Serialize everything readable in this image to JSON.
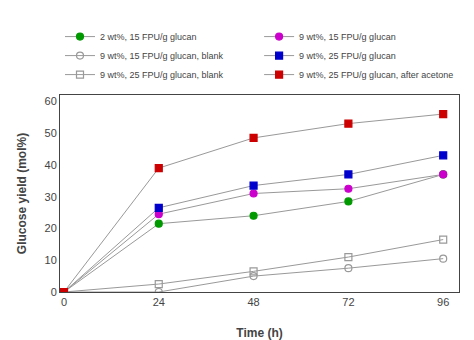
{
  "chart_data": {
    "type": "line",
    "xlabel": "Time (h)",
    "ylabel": "Glucose yield (mol%)",
    "x": [
      0,
      24,
      48,
      72,
      96
    ],
    "color": "#999999",
    "series": [
      {
        "name": "2 wt%, 15 FPU/g glucan",
        "color": "#009900",
        "marker": "circle",
        "values": [
          0,
          21.5,
          24,
          28.5,
          37
        ]
      },
      {
        "name": "9 wt%, 15 FPU/g glucan",
        "color": "#cc00cc",
        "marker": "circle",
        "values": [
          0,
          24.5,
          31,
          32.5,
          37
        ]
      },
      {
        "name": "9 wt%, 15 FPU/g glucan, blank",
        "color": "#999999",
        "marker": "circle-open",
        "values": [
          0,
          0,
          5,
          7.5,
          10.5
        ]
      },
      {
        "name": "9 wt%, 25 FPU/g glucan",
        "color": "#0000cc",
        "marker": "square",
        "values": [
          0,
          26.5,
          33.5,
          37,
          43
        ]
      },
      {
        "name": "9 wt%, 25 FPU/g glucan, blank",
        "color": "#999999",
        "marker": "square-open",
        "values": [
          0,
          2.5,
          6.5,
          11,
          16.5
        ]
      },
      {
        "name": "9 wt%, 25 FPU/g glucan, after acetone",
        "color": "#cc0000",
        "marker": "square",
        "values": [
          0,
          39,
          48.5,
          53,
          56
        ]
      }
    ],
    "xlim": [
      -1,
      100
    ],
    "ylim": [
      0,
      62
    ],
    "xticks": [
      0,
      24,
      48,
      72,
      96
    ],
    "yticks": [
      0,
      10,
      20,
      30,
      40,
      50,
      60
    ],
    "grid": false,
    "legend": "top"
  }
}
